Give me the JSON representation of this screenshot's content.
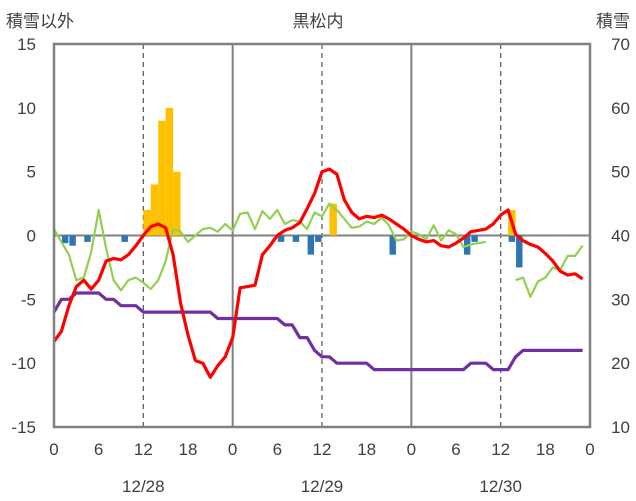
{
  "chart_data": {
    "type": "bar+line",
    "title": "黒松内",
    "ylabel_left": "積雪以外",
    "ylabel_right": "積雪",
    "left_axis": {
      "min": -15,
      "max": 15,
      "ticks": [
        "15",
        "10",
        "5",
        "0",
        "-5",
        "-10",
        "-15"
      ]
    },
    "right_axis": {
      "min": 10,
      "max": 70,
      "ticks": [
        "70",
        "60",
        "50",
        "40",
        "30",
        "20",
        "10"
      ]
    },
    "x_axis": {
      "min": 0,
      "max": 72,
      "tick_labels": [
        "0",
        "6",
        "12",
        "18",
        "0",
        "6",
        "12",
        "18",
        "0",
        "6",
        "12",
        "18",
        "0"
      ]
    },
    "dates": [
      "12/28",
      "12/29",
      "12/30"
    ],
    "grid": {
      "solid_hours": [
        24,
        48
      ],
      "dashed_hours": [
        12,
        36,
        60
      ]
    },
    "colors": {
      "snowfall": "#ffc000",
      "precip": "#2e75b6",
      "temperature": "#ff0000",
      "wind": "#92d050",
      "snow_depth": "#7030a0",
      "frame": "#808080"
    },
    "snowfall_bars": [
      {
        "hour": 12,
        "value": 2
      },
      {
        "hour": 13,
        "value": 4
      },
      {
        "hour": 14,
        "value": 9
      },
      {
        "hour": 15,
        "value": 10
      },
      {
        "hour": 16,
        "value": 5
      },
      {
        "hour": 37,
        "value": 2.5
      },
      {
        "hour": 61,
        "value": 2
      }
    ],
    "precip_bars": [
      {
        "hour": 1,
        "value": -0.6
      },
      {
        "hour": 2,
        "value": -0.8
      },
      {
        "hour": 4,
        "value": -0.5
      },
      {
        "hour": 9,
        "value": -0.5
      },
      {
        "hour": 30,
        "value": -0.5
      },
      {
        "hour": 32,
        "value": -0.5
      },
      {
        "hour": 34,
        "value": -1.5
      },
      {
        "hour": 35,
        "value": -0.5
      },
      {
        "hour": 45,
        "value": -1.5
      },
      {
        "hour": 55,
        "value": -1.5
      },
      {
        "hour": 56,
        "value": -0.5
      },
      {
        "hour": 61,
        "value": -0.5
      },
      {
        "hour": 62,
        "value": -2.5
      }
    ],
    "temperature": [
      [
        0,
        -8.3
      ],
      [
        1,
        -7.5
      ],
      [
        2,
        -5.5
      ],
      [
        3,
        -4
      ],
      [
        4,
        -3.5
      ],
      [
        5,
        -4.2
      ],
      [
        6,
        -3.5
      ],
      [
        7,
        -2
      ],
      [
        8,
        -1.8
      ],
      [
        9,
        -1.9
      ],
      [
        10,
        -1.5
      ],
      [
        11,
        -0.8
      ],
      [
        12,
        0
      ],
      [
        13,
        0.7
      ],
      [
        14,
        0.9
      ],
      [
        15,
        0.6
      ],
      [
        16,
        -1.5
      ],
      [
        17,
        -5.3
      ],
      [
        18,
        -7.8
      ],
      [
        19,
        -9.8
      ],
      [
        20,
        -10
      ],
      [
        21,
        -11.1
      ],
      [
        22,
        -10.2
      ],
      [
        23,
        -9.5
      ],
      [
        24,
        -8
      ],
      [
        25,
        -4.1
      ],
      [
        26,
        -4
      ],
      [
        27,
        -3.9
      ],
      [
        28,
        -1.5
      ],
      [
        29,
        -0.8
      ],
      [
        30,
        0
      ],
      [
        31,
        0.4
      ],
      [
        32,
        0.6
      ],
      [
        33,
        1
      ],
      [
        34,
        2.1
      ],
      [
        35,
        3.3
      ],
      [
        36,
        5
      ],
      [
        37,
        5.2
      ],
      [
        38,
        4.8
      ],
      [
        39,
        2.8
      ],
      [
        40,
        1.8
      ],
      [
        41,
        1.3
      ],
      [
        42,
        1.5
      ],
      [
        43,
        1.4
      ],
      [
        44,
        1.6
      ],
      [
        45,
        1.3
      ],
      [
        46,
        0.9
      ],
      [
        47,
        0.5
      ],
      [
        48,
        0
      ],
      [
        49,
        -0.3
      ],
      [
        50,
        -0.5
      ],
      [
        51,
        -0.4
      ],
      [
        52,
        -0.8
      ],
      [
        53,
        -0.9
      ],
      [
        54,
        -0.6
      ],
      [
        55,
        -0.2
      ],
      [
        56,
        0.3
      ],
      [
        57,
        0.4
      ],
      [
        58,
        0.5
      ],
      [
        59,
        0.9
      ],
      [
        60,
        1.6
      ],
      [
        61,
        2
      ],
      [
        62,
        0.1
      ],
      [
        63,
        -0.4
      ],
      [
        64,
        -0.7
      ],
      [
        65,
        -0.9
      ],
      [
        66,
        -1.4
      ],
      [
        67,
        -2
      ],
      [
        68,
        -2.8
      ],
      [
        69,
        -3.1
      ],
      [
        70,
        -3
      ],
      [
        71,
        -3.4
      ]
    ],
    "wind_segments": [
      [
        [
          0,
          0.5
        ],
        [
          1,
          -0.5
        ],
        [
          2,
          -1.5
        ],
        [
          3,
          -3.5
        ],
        [
          4,
          -3.3
        ],
        [
          5,
          -1.3
        ],
        [
          6,
          2
        ],
        [
          7,
          -1
        ],
        [
          8,
          -3.5
        ],
        [
          9,
          -4.3
        ],
        [
          10,
          -3.5
        ],
        [
          11,
          -3.3
        ],
        [
          12,
          -3.7
        ],
        [
          13,
          -4.2
        ],
        [
          14,
          -3.5
        ],
        [
          15,
          -2
        ],
        [
          16,
          0.5
        ],
        [
          17,
          0.3
        ],
        [
          18,
          -0.5
        ],
        [
          19,
          0
        ],
        [
          20,
          0.5
        ],
        [
          21,
          0.6
        ],
        [
          22,
          0.3
        ],
        [
          23,
          0.9
        ],
        [
          24,
          0.4
        ],
        [
          25,
          1.7
        ],
        [
          26,
          1.8
        ],
        [
          27,
          0.5
        ],
        [
          28,
          1.9
        ],
        [
          29,
          1.3
        ],
        [
          30,
          2
        ],
        [
          31,
          0.9
        ],
        [
          32,
          1.2
        ],
        [
          33,
          1.1
        ],
        [
          34,
          0.5
        ],
        [
          35,
          1.8
        ],
        [
          36,
          1.5
        ],
        [
          37,
          2.5
        ],
        [
          38,
          2
        ],
        [
          39,
          1.3
        ],
        [
          40,
          0.6
        ],
        [
          41,
          0.7
        ],
        [
          42,
          1.1
        ],
        [
          43,
          0.9
        ],
        [
          44,
          1.4
        ],
        [
          45,
          0.8
        ],
        [
          46,
          -0.4
        ],
        [
          47,
          -0.3
        ],
        [
          48,
          0.3
        ],
        [
          49,
          0.1
        ],
        [
          50,
          -0.3
        ],
        [
          51,
          0.8
        ],
        [
          52,
          -0.4
        ],
        [
          53,
          0.4
        ],
        [
          54,
          0.1
        ],
        [
          55,
          -0.9
        ],
        [
          56,
          -0.7
        ],
        [
          57,
          -0.6
        ],
        [
          58,
          -0.5
        ]
      ],
      [
        [
          62,
          -3.5
        ],
        [
          63,
          -3.3
        ],
        [
          64,
          -4.8
        ],
        [
          65,
          -3.6
        ],
        [
          66,
          -3.3
        ],
        [
          67,
          -2.5
        ],
        [
          68,
          -2.7
        ],
        [
          69,
          -1.6
        ],
        [
          70,
          -1.6
        ],
        [
          71,
          -0.8
        ]
      ]
    ],
    "snow_depth": [
      [
        0,
        28
      ],
      [
        1,
        30
      ],
      [
        2,
        30
      ],
      [
        3,
        31
      ],
      [
        4,
        31
      ],
      [
        5,
        31
      ],
      [
        6,
        31
      ],
      [
        7,
        30
      ],
      [
        8,
        30
      ],
      [
        9,
        29
      ],
      [
        10,
        29
      ],
      [
        11,
        29
      ],
      [
        12,
        28
      ],
      [
        13,
        28
      ],
      [
        14,
        28
      ],
      [
        15,
        28
      ],
      [
        16,
        28
      ],
      [
        17,
        28
      ],
      [
        18,
        28
      ],
      [
        19,
        28
      ],
      [
        20,
        28
      ],
      [
        21,
        28
      ],
      [
        22,
        27
      ],
      [
        23,
        27
      ],
      [
        24,
        27
      ],
      [
        25,
        27
      ],
      [
        26,
        27
      ],
      [
        27,
        27
      ],
      [
        28,
        27
      ],
      [
        29,
        27
      ],
      [
        30,
        27
      ],
      [
        31,
        26
      ],
      [
        32,
        26
      ],
      [
        33,
        24
      ],
      [
        34,
        24
      ],
      [
        35,
        22
      ],
      [
        36,
        21
      ],
      [
        37,
        21
      ],
      [
        38,
        20
      ],
      [
        39,
        20
      ],
      [
        40,
        20
      ],
      [
        41,
        20
      ],
      [
        42,
        20
      ],
      [
        43,
        19
      ],
      [
        44,
        19
      ],
      [
        45,
        19
      ],
      [
        46,
        19
      ],
      [
        47,
        19
      ],
      [
        48,
        19
      ],
      [
        49,
        19
      ],
      [
        50,
        19
      ],
      [
        51,
        19
      ],
      [
        52,
        19
      ],
      [
        53,
        19
      ],
      [
        54,
        19
      ],
      [
        55,
        19
      ],
      [
        56,
        20
      ],
      [
        57,
        20
      ],
      [
        58,
        20
      ],
      [
        59,
        19
      ],
      [
        60,
        19
      ],
      [
        61,
        19
      ],
      [
        62,
        21
      ],
      [
        63,
        22
      ],
      [
        64,
        22
      ],
      [
        65,
        22
      ],
      [
        66,
        22
      ],
      [
        67,
        22
      ],
      [
        68,
        22
      ],
      [
        69,
        22
      ],
      [
        70,
        22
      ],
      [
        71,
        22
      ]
    ]
  }
}
